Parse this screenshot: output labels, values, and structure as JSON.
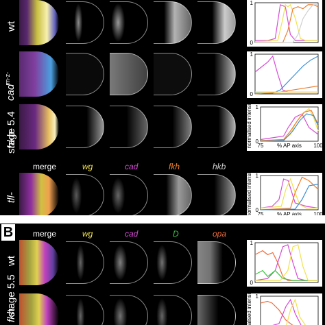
{
  "rows": [
    {
      "genotype": "wt"
    },
    {
      "genotype": "cad",
      "genotype_sup": "m-z-"
    },
    {
      "genotype": "hkb-"
    },
    {
      "genotype": "tll-"
    },
    {
      "genotype": "wt"
    },
    {
      "genotype": "fkh-"
    }
  ],
  "stage_labels": {
    "a": "stage 5.4",
    "b": "stage 5.5"
  },
  "panel_letter": "B",
  "headers_a": {
    "merge": "merge",
    "c1": "wg",
    "c2": "cad",
    "c3": "fkh",
    "c4": "hkb"
  },
  "headers_b": {
    "merge": "merge",
    "c1": "wg",
    "c2": "cad",
    "c3": "D",
    "c4": "opa"
  },
  "colors": {
    "wg": "#f2e24a",
    "cad": "#d64bd6",
    "fkh": "#f07f2e",
    "hkb": "#cfcfcf",
    "D": "#38c43f",
    "opa": "#f06a3a",
    "cad_blue": "#3b8fd6"
  },
  "plot_axis": {
    "ylabel": "normalised intensity",
    "xlabel": "% AP axis",
    "x_ticks": [
      "75",
      "100"
    ],
    "y_ticks": [
      "0",
      "1"
    ]
  },
  "chart_data": [
    {
      "type": "line",
      "row": "wt",
      "xlim": [
        75,
        100
      ],
      "ylim": [
        0,
        1
      ],
      "series": [
        {
          "color": "#d64bd6",
          "x": [
            75,
            80,
            83,
            85,
            87,
            89,
            91,
            93,
            95,
            97,
            100
          ],
          "y": [
            0.05,
            0.05,
            0.1,
            0.95,
            0.9,
            0.2,
            0.05,
            0.05,
            0.05,
            0.05,
            0.05
          ]
        },
        {
          "color": "#f2e24a",
          "x": [
            75,
            84,
            86,
            87,
            88,
            89,
            91,
            93,
            95,
            97,
            100
          ],
          "y": [
            0.02,
            0.05,
            0.6,
            0.95,
            0.9,
            0.95,
            0.6,
            0.1,
            0.05,
            0.05,
            0.05
          ]
        },
        {
          "color": "#f07f2e",
          "x": [
            75,
            86,
            88,
            90,
            92,
            94,
            96,
            98,
            100
          ],
          "y": [
            0.0,
            0.0,
            0.3,
            0.85,
            0.9,
            0.85,
            0.95,
            0.95,
            0.9
          ]
        },
        {
          "color": "#cfcfcf",
          "x": [
            75,
            90,
            92,
            94,
            96,
            98,
            100
          ],
          "y": [
            0.0,
            0.0,
            0.2,
            0.6,
            0.8,
            0.95,
            0.95
          ]
        }
      ]
    },
    {
      "type": "line",
      "row": "cadm-z-",
      "xlim": [
        75,
        100
      ],
      "ylim": [
        0,
        1
      ],
      "series": [
        {
          "color": "#d64bd6",
          "x": [
            75,
            78,
            80,
            82,
            84,
            86,
            88,
            90,
            95,
            100
          ],
          "y": [
            0.55,
            0.7,
            0.8,
            0.95,
            0.5,
            0.1,
            0.05,
            0.05,
            0.05,
            0.05
          ]
        },
        {
          "color": "#3b8fd6",
          "x": [
            75,
            82,
            85,
            88,
            91,
            94,
            97,
            100
          ],
          "y": [
            0.02,
            0.02,
            0.1,
            0.3,
            0.5,
            0.7,
            0.85,
            0.95
          ]
        },
        {
          "color": "#f07f2e",
          "x": [
            75,
            85,
            90,
            95,
            100
          ],
          "y": [
            0.0,
            0.05,
            0.1,
            0.15,
            0.2
          ]
        },
        {
          "color": "#f2e24a",
          "x": [
            75,
            100
          ],
          "y": [
            0.05,
            0.05
          ]
        }
      ]
    },
    {
      "type": "line",
      "row": "hkb-",
      "xlim": [
        75,
        100
      ],
      "ylim": [
        0,
        1
      ],
      "series": [
        {
          "color": "#d64bd6",
          "x": [
            75,
            80,
            85,
            87,
            90,
            93,
            96,
            100
          ],
          "y": [
            0.05,
            0.1,
            0.15,
            0.4,
            0.7,
            0.8,
            0.4,
            0.2
          ]
        },
        {
          "color": "#f2e24a",
          "x": [
            75,
            85,
            88,
            90,
            93,
            96,
            98,
            100
          ],
          "y": [
            0.02,
            0.05,
            0.2,
            0.5,
            0.8,
            0.95,
            0.7,
            0.3
          ]
        },
        {
          "color": "#f07f2e",
          "x": [
            75,
            85,
            88,
            91,
            94,
            97,
            100
          ],
          "y": [
            0.02,
            0.05,
            0.3,
            0.6,
            0.85,
            0.9,
            0.5
          ]
        },
        {
          "color": "#3b8fd6",
          "x": [
            75,
            85,
            89,
            92,
            95,
            98,
            100
          ],
          "y": [
            0.0,
            0.02,
            0.3,
            0.6,
            0.8,
            0.75,
            0.45
          ]
        }
      ]
    },
    {
      "type": "line",
      "row": "tll-",
      "xlim": [
        75,
        100
      ],
      "ylim": [
        0,
        1
      ],
      "series": [
        {
          "color": "#d64bd6",
          "x": [
            75,
            80,
            83,
            85,
            87,
            90,
            95,
            100
          ],
          "y": [
            0.05,
            0.1,
            0.3,
            0.9,
            0.85,
            0.2,
            0.1,
            0.05
          ]
        },
        {
          "color": "#f2e24a",
          "x": [
            75,
            84,
            86,
            88,
            90,
            92,
            95,
            100
          ],
          "y": [
            0.05,
            0.1,
            0.6,
            0.9,
            0.5,
            0.15,
            0.05,
            0.05
          ]
        },
        {
          "color": "#f07f2e",
          "x": [
            75,
            88,
            90,
            93,
            96,
            100
          ],
          "y": [
            0.0,
            0.05,
            0.5,
            0.95,
            0.85,
            0.6
          ]
        },
        {
          "color": "#3b8fd6",
          "x": [
            75,
            90,
            93,
            96,
            100
          ],
          "y": [
            0.0,
            0.02,
            0.3,
            0.7,
            0.75
          ]
        }
      ]
    },
    {
      "type": "line",
      "row": "wt 5.5",
      "xlim": [
        75,
        100
      ],
      "ylim": [
        0,
        1
      ],
      "series": [
        {
          "color": "#f06a3a",
          "x": [
            75,
            78,
            80,
            82,
            84,
            86,
            88,
            90,
            95,
            100
          ],
          "y": [
            0.7,
            0.8,
            0.7,
            0.75,
            0.5,
            0.15,
            0.05,
            0.05,
            0.05,
            0.05
          ]
        },
        {
          "color": "#d64bd6",
          "x": [
            75,
            80,
            83,
            86,
            88,
            90,
            92,
            95,
            100
          ],
          "y": [
            0.05,
            0.1,
            0.3,
            0.9,
            0.95,
            0.5,
            0.1,
            0.05,
            0.05
          ]
        },
        {
          "color": "#38c43f",
          "x": [
            75,
            78,
            80,
            83,
            86,
            90,
            100
          ],
          "y": [
            0.2,
            0.3,
            0.15,
            0.3,
            0.1,
            0.05,
            0.05
          ]
        },
        {
          "color": "#f2e24a",
          "x": [
            75,
            85,
            88,
            90,
            92,
            94,
            96,
            100
          ],
          "y": [
            0.05,
            0.05,
            0.3,
            0.9,
            0.95,
            0.4,
            0.05,
            0.05
          ]
        }
      ]
    },
    {
      "type": "line",
      "row": "fkh-",
      "xlim": [
        75,
        100
      ],
      "ylim": [
        0,
        1
      ],
      "series": [
        {
          "color": "#f06a3a",
          "x": [
            75,
            78,
            80,
            83,
            86,
            90,
            95,
            100
          ],
          "y": [
            0.8,
            0.85,
            0.8,
            0.6,
            0.3,
            0.1,
            0.05,
            0.05
          ]
        },
        {
          "color": "#d64bd6",
          "x": [
            75,
            83,
            86,
            88,
            90,
            93,
            100
          ],
          "y": [
            0.05,
            0.2,
            0.7,
            0.9,
            0.5,
            0.1,
            0.05
          ]
        },
        {
          "color": "#f2e24a",
          "x": [
            75,
            86,
            88,
            90,
            92,
            95,
            100
          ],
          "y": [
            0.05,
            0.1,
            0.6,
            0.9,
            0.4,
            0.1,
            0.05
          ]
        }
      ]
    }
  ]
}
